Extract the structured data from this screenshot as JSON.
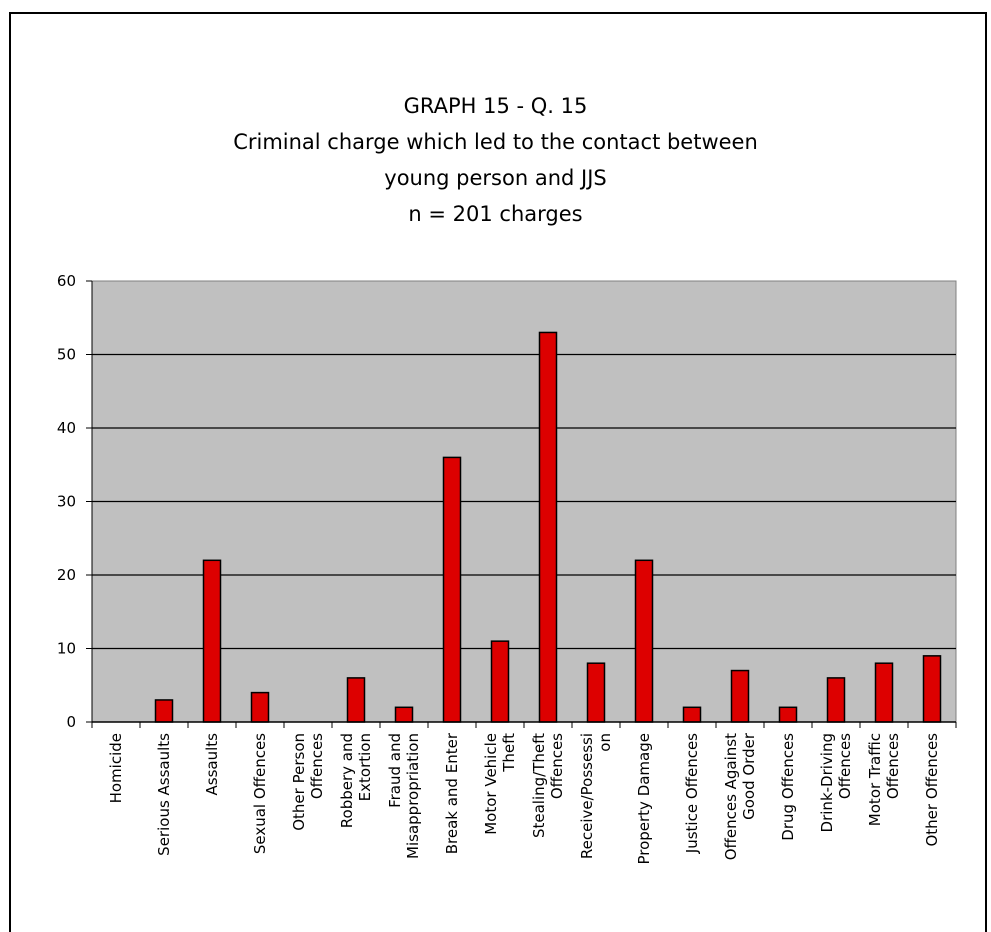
{
  "chart_data": {
    "type": "bar",
    "title_lines": [
      "GRAPH 15 - Q. 15",
      "Criminal charge which led to the contact between",
      "young person and JJS",
      "n = 201 charges"
    ],
    "categories": [
      [
        "Homicide"
      ],
      [
        "Serious Assaults"
      ],
      [
        "Assaults"
      ],
      [
        "Sexual Offences"
      ],
      [
        "Other Person",
        "Offences"
      ],
      [
        "Robbery and",
        "Extortion"
      ],
      [
        "Fraud and",
        "Misappropriation"
      ],
      [
        "Break and Enter"
      ],
      [
        "Motor Vehicle",
        "Theft"
      ],
      [
        "Stealing/Theft",
        "Offences"
      ],
      [
        "Receive/Possessi",
        "on"
      ],
      [
        "Property Damage"
      ],
      [
        "Justice Offences"
      ],
      [
        "Offences Against",
        "Good Order"
      ],
      [
        "Drug Offences"
      ],
      [
        "Drink-Driving",
        "Offences"
      ],
      [
        "Motor Traffic",
        "Offences"
      ],
      [
        "Other Offences"
      ]
    ],
    "values": [
      0,
      3,
      22,
      4,
      0,
      6,
      2,
      36,
      11,
      53,
      8,
      22,
      2,
      7,
      2,
      6,
      8,
      9
    ],
    "ylim": [
      0,
      60
    ],
    "yticks": [
      "0",
      "10",
      "20",
      "30",
      "40",
      "50",
      "60"
    ],
    "grid": true,
    "legend": "none",
    "colors": {
      "bar": "#dd0000",
      "plot_bg": "#c0c0c0",
      "bar_edge": "#000000"
    }
  }
}
